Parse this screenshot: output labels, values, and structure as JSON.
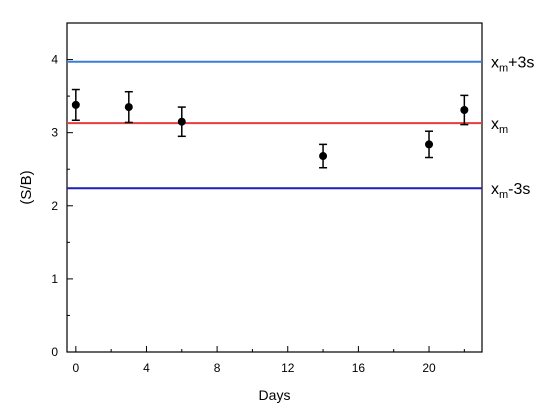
{
  "chart_data": {
    "type": "scatter",
    "title": "",
    "xlabel": "Days",
    "ylabel": "(S/B)",
    "xlim": [
      -0.5,
      23
    ],
    "ylim": [
      0,
      4.5
    ],
    "x_ticks": [
      0,
      4,
      8,
      12,
      16,
      20
    ],
    "y_ticks": [
      0,
      1,
      2,
      3,
      4
    ],
    "x_tick_labels": [
      "0",
      "4",
      "8",
      "12",
      "16",
      "20"
    ],
    "y_tick_labels": [
      "0",
      "1",
      "2",
      "3",
      "4"
    ],
    "grid": false,
    "series": [
      {
        "x": [
          0,
          3,
          6,
          14,
          20,
          22
        ],
        "y": [
          3.38,
          3.35,
          3.15,
          2.68,
          2.84,
          3.31
        ],
        "error": [
          0.21,
          0.21,
          0.2,
          0.16,
          0.18,
          0.2
        ],
        "color": "#000000"
      }
    ],
    "reference_lines": [
      {
        "label_main": "x",
        "label_sub": "m",
        "label_suffix": "+3s",
        "y": 3.97,
        "color": "#3a7fd5"
      },
      {
        "label_main": "x",
        "label_sub": "m",
        "label_suffix": "",
        "y": 3.13,
        "color": "#e83b3b"
      },
      {
        "label_main": "x",
        "label_sub": "m",
        "label_suffix": "-3s",
        "y": 2.24,
        "color": "#1a1fb8"
      }
    ]
  }
}
